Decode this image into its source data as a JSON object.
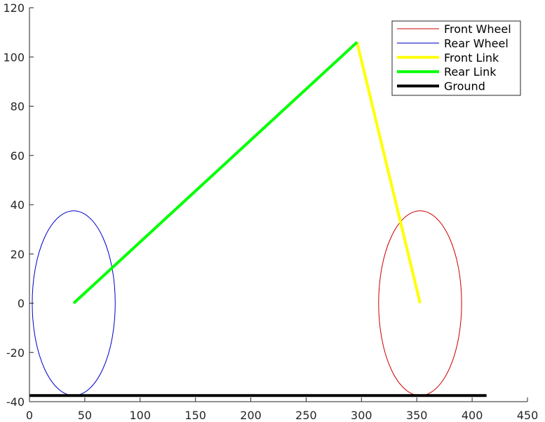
{
  "chart_data": {
    "type": "line",
    "title": "",
    "xlabel": "",
    "ylabel": "",
    "xlim": [
      0,
      450
    ],
    "ylim": [
      -40,
      120
    ],
    "xticks": [
      0,
      50,
      100,
      150,
      200,
      250,
      300,
      350,
      400,
      450
    ],
    "yticks": [
      -40,
      -20,
      0,
      20,
      40,
      60,
      80,
      100,
      120
    ],
    "grid": false,
    "legend_position": "top-right",
    "series": [
      {
        "name": "Front Wheel",
        "kind": "ellipse",
        "center": [
          353,
          0
        ],
        "radii": [
          37.5,
          37.5
        ],
        "color": "#cc0000",
        "line_width": 1
      },
      {
        "name": "Rear Wheel",
        "kind": "ellipse",
        "center": [
          40,
          0
        ],
        "radii": [
          37.5,
          37.5
        ],
        "color": "#0000cc",
        "line_width": 1
      },
      {
        "name": "Front Link",
        "kind": "line",
        "x": [
          296,
          353
        ],
        "y": [
          106,
          0
        ],
        "color": "#ffff00",
        "line_width": 4
      },
      {
        "name": "Rear Link",
        "kind": "line",
        "x": [
          40,
          296
        ],
        "y": [
          0,
          106
        ],
        "color": "#00ff00",
        "line_width": 4
      },
      {
        "name": "Ground",
        "kind": "line",
        "x": [
          0,
          413
        ],
        "y": [
          -37.5,
          -37.5
        ],
        "color": "#000000",
        "line_width": 4
      }
    ]
  }
}
